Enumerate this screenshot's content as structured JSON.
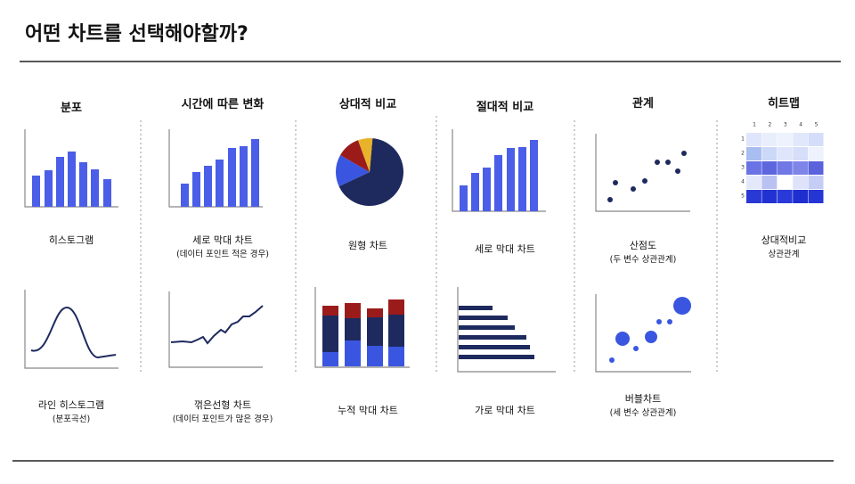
{
  "title": "어떤 차트를 선택해야할까?",
  "columns": [
    {
      "heading": "분포",
      "items": [
        {
          "lines": [
            "히스토그램"
          ]
        },
        {
          "lines": [
            "라인 히스토그램",
            "(분포곡선)"
          ]
        }
      ]
    },
    {
      "heading": "시간에 따른 변화",
      "items": [
        {
          "lines": [
            "세로 막대 차트",
            "(데이터 포인트 적은 경우)"
          ]
        },
        {
          "lines": [
            "꺾은선형 차트",
            "(데이터 포인트가 많은 경우)"
          ]
        }
      ]
    },
    {
      "heading": "상대적 비교",
      "items": [
        {
          "lines": [
            "원형 차트"
          ]
        },
        {
          "lines": [
            "누적 막대 차트"
          ]
        }
      ]
    },
    {
      "heading": "절대적 비교",
      "items": [
        {
          "lines": [
            "세로 막대 차트"
          ]
        },
        {
          "lines": [
            "가로 막대 차트"
          ]
        }
      ]
    },
    {
      "heading": "관계",
      "items": [
        {
          "lines": [
            "산점도",
            "(두 변수 상관관계)"
          ]
        },
        {
          "lines": [
            "버블차트",
            "(세 변수 상관관계)"
          ]
        }
      ]
    },
    {
      "heading": "히트맵",
      "items": [
        {
          "lines": [
            "상대적비교",
            "상관관계"
          ]
        }
      ]
    }
  ],
  "heatmap": {
    "col_labels": [
      "1",
      "2",
      "3",
      "4",
      "5"
    ],
    "row_labels": [
      "1",
      "2",
      "3",
      "4",
      "5"
    ]
  }
}
